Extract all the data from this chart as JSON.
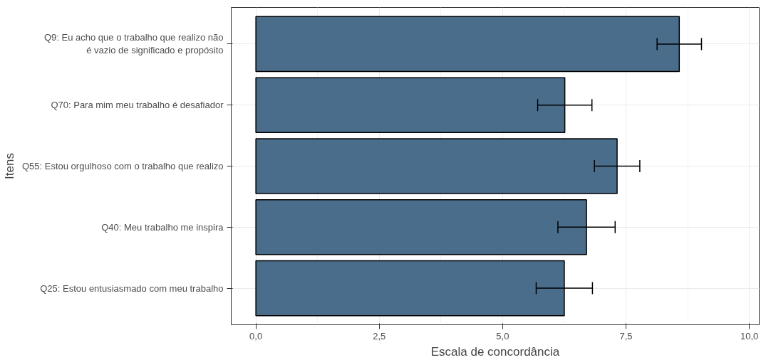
{
  "chart_data": {
    "type": "bar",
    "orientation": "horizontal",
    "xlabel": "Escala de concordância",
    "ylabel": "Itens",
    "categories": [
      "Q9: Eu acho que o trabalho que realizo não\né vazio de significado e propósito",
      "Q70: Para mim meu trabalho é desafiador",
      "Q55: Estou orgulhoso com o trabalho que realizo",
      "Q40: Meu trabalho me inspira",
      "Q25: Estou entusiasmado com meu trabalho"
    ],
    "values": [
      8.58,
      6.26,
      7.32,
      6.7,
      6.25
    ],
    "errors": [
      0.45,
      0.55,
      0.46,
      0.58,
      0.57
    ],
    "color": "#4a6d8c",
    "xlim": [
      -0.5,
      10.2
    ],
    "xticks": [
      {
        "value": 0,
        "label": "0,0"
      },
      {
        "value": 2.5,
        "label": "2,5"
      },
      {
        "value": 5,
        "label": "5,0"
      },
      {
        "value": 7.5,
        "label": "7,5"
      },
      {
        "value": 10,
        "label": "10,0"
      }
    ],
    "grid": true
  }
}
